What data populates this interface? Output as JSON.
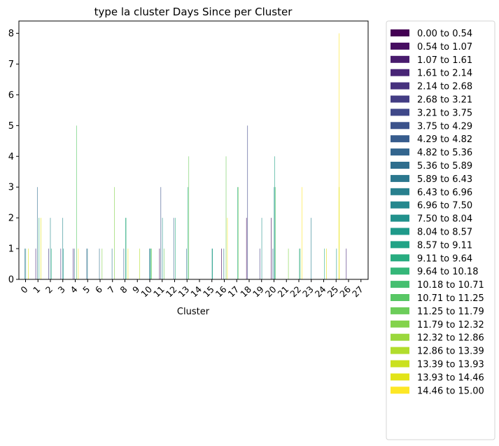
{
  "chart_data": {
    "type": "bar",
    "title": "type la cluster Days Since per Cluster",
    "xlabel": "Cluster",
    "ylabel": "",
    "ylim": [
      0,
      8.4
    ],
    "yticks": [
      0,
      1,
      2,
      3,
      4,
      5,
      6,
      7,
      8
    ],
    "grid": false,
    "legend_position": "right, outside plot",
    "categories": [
      "0",
      "1",
      "2",
      "3",
      "4",
      "5",
      "6",
      "7",
      "8",
      "9",
      "10",
      "11",
      "12",
      "13",
      "14",
      "15",
      "16",
      "17",
      "18",
      "19",
      "20",
      "21",
      "22",
      "23",
      "24",
      "25",
      "26",
      "27"
    ],
    "legend": [
      "0.00 to 0.54",
      "0.54 to 1.07",
      "1.07 to 1.61",
      "1.61 to 2.14",
      "2.14 to 2.68",
      "2.68 to 3.21",
      "3.21 to 3.75",
      "3.75 to 4.29",
      "4.29 to 4.82",
      "4.82 to 5.36",
      "5.36 to 5.89",
      "5.89 to 6.43",
      "6.43 to 6.96",
      "6.96 to 7.50",
      "7.50 to 8.04",
      "8.04 to 8.57",
      "8.57 to 9.11",
      "9.11 to 9.64",
      "9.64 to 10.18",
      "10.18 to 10.71",
      "10.71 to 11.25",
      "11.25 to 11.79",
      "11.79 to 12.32",
      "12.32 to 12.86",
      "12.86 to 13.39",
      "13.39 to 13.93",
      "13.93 to 14.46",
      "14.46 to 15.00"
    ],
    "colors": [
      "#440154",
      "#470e61",
      "#481b6d",
      "#482576",
      "#46317e",
      "#433d84",
      "#3f4889",
      "#3b528b",
      "#375c8d",
      "#33658e",
      "#2f6e8e",
      "#2b778e",
      "#28808e",
      "#25888e",
      "#21918c",
      "#1f9a8a",
      "#21a386",
      "#28ac80",
      "#35b779",
      "#45bf70",
      "#58c765",
      "#6ccd5a",
      "#83d34b",
      "#9ad83c",
      "#b2dd2d",
      "#cae11f",
      "#e2e418",
      "#fde725"
    ],
    "points": [
      {
        "cluster": 0,
        "range": 10,
        "value": 1
      },
      {
        "cluster": 0,
        "range": 14,
        "value": 1
      },
      {
        "cluster": 0,
        "range": 26,
        "value": 1
      },
      {
        "cluster": 1,
        "range": 3,
        "value": 1
      },
      {
        "cluster": 1,
        "range": 10,
        "value": 3
      },
      {
        "cluster": 1,
        "range": 18,
        "value": 2
      },
      {
        "cluster": 1,
        "range": 26,
        "value": 2
      },
      {
        "cluster": 2,
        "range": 5,
        "value": 1
      },
      {
        "cluster": 2,
        "range": 13,
        "value": 2
      },
      {
        "cluster": 2,
        "range": 17,
        "value": 1
      },
      {
        "cluster": 3,
        "range": 4,
        "value": 1
      },
      {
        "cluster": 3,
        "range": 13,
        "value": 2
      },
      {
        "cluster": 3,
        "range": 15,
        "value": 1
      },
      {
        "cluster": 4,
        "range": 3,
        "value": 1
      },
      {
        "cluster": 4,
        "range": 9,
        "value": 1
      },
      {
        "cluster": 4,
        "range": 20,
        "value": 5
      },
      {
        "cluster": 4,
        "range": 27,
        "value": 1
      },
      {
        "cluster": 5,
        "range": 9,
        "value": 1
      },
      {
        "cluster": 5,
        "range": 12,
        "value": 1
      },
      {
        "cluster": 6,
        "range": 10,
        "value": 1
      },
      {
        "cluster": 6,
        "range": 22,
        "value": 1
      },
      {
        "cluster": 7,
        "range": 11,
        "value": 1
      },
      {
        "cluster": 7,
        "range": 22,
        "value": 3
      },
      {
        "cluster": 8,
        "range": 8,
        "value": 1
      },
      {
        "cluster": 8,
        "range": 16,
        "value": 2
      },
      {
        "cluster": 8,
        "range": 18,
        "value": 2
      },
      {
        "cluster": 8,
        "range": 27,
        "value": 1
      },
      {
        "cluster": 9,
        "range": 24,
        "value": 1
      },
      {
        "cluster": 10,
        "range": 12,
        "value": 1
      },
      {
        "cluster": 10,
        "range": 14,
        "value": 1
      },
      {
        "cluster": 10,
        "range": 18,
        "value": 1
      },
      {
        "cluster": 10,
        "range": 21,
        "value": 1
      },
      {
        "cluster": 11,
        "range": 1,
        "value": 1
      },
      {
        "cluster": 11,
        "range": 7,
        "value": 3
      },
      {
        "cluster": 11,
        "range": 14,
        "value": 2
      },
      {
        "cluster": 11,
        "range": 21,
        "value": 1
      },
      {
        "cluster": 12,
        "range": 9,
        "value": 2
      },
      {
        "cluster": 12,
        "range": 17,
        "value": 2
      },
      {
        "cluster": 13,
        "range": 11,
        "value": 1
      },
      {
        "cluster": 13,
        "range": 17,
        "value": 3
      },
      {
        "cluster": 13,
        "range": 21,
        "value": 4
      },
      {
        "cluster": 15,
        "range": 14,
        "value": 1
      },
      {
        "cluster": 15,
        "range": 16,
        "value": 1
      },
      {
        "cluster": 16,
        "range": 0,
        "value": 1
      },
      {
        "cluster": 16,
        "range": 11,
        "value": 1
      },
      {
        "cluster": 16,
        "range": 21,
        "value": 4
      },
      {
        "cluster": 16,
        "range": 27,
        "value": 2
      },
      {
        "cluster": 17,
        "range": 17,
        "value": 3
      },
      {
        "cluster": 17,
        "range": 21,
        "value": 3
      },
      {
        "cluster": 18,
        "range": 1,
        "value": 2
      },
      {
        "cluster": 18,
        "range": 6,
        "value": 5
      },
      {
        "cluster": 19,
        "range": 5,
        "value": 1
      },
      {
        "cluster": 19,
        "range": 14,
        "value": 2
      },
      {
        "cluster": 20,
        "range": 0,
        "value": 2
      },
      {
        "cluster": 20,
        "range": 8,
        "value": 1
      },
      {
        "cluster": 20,
        "range": 14,
        "value": 3
      },
      {
        "cluster": 20,
        "range": 16,
        "value": 4
      },
      {
        "cluster": 20,
        "range": 20,
        "value": 3
      },
      {
        "cluster": 21,
        "range": 22,
        "value": 1
      },
      {
        "cluster": 22,
        "range": 16,
        "value": 1
      },
      {
        "cluster": 22,
        "range": 19,
        "value": 1
      },
      {
        "cluster": 22,
        "range": 27,
        "value": 3
      },
      {
        "cluster": 23,
        "range": 12,
        "value": 2
      },
      {
        "cluster": 24,
        "range": 17,
        "value": 1
      },
      {
        "cluster": 24,
        "range": 26,
        "value": 1
      },
      {
        "cluster": 25,
        "range": 15,
        "value": 1
      },
      {
        "cluster": 25,
        "range": 27,
        "value": 8
      },
      {
        "cluster": 25,
        "range": 26,
        "value": 3
      },
      {
        "cluster": 26,
        "range": 3,
        "value": 1
      }
    ]
  }
}
